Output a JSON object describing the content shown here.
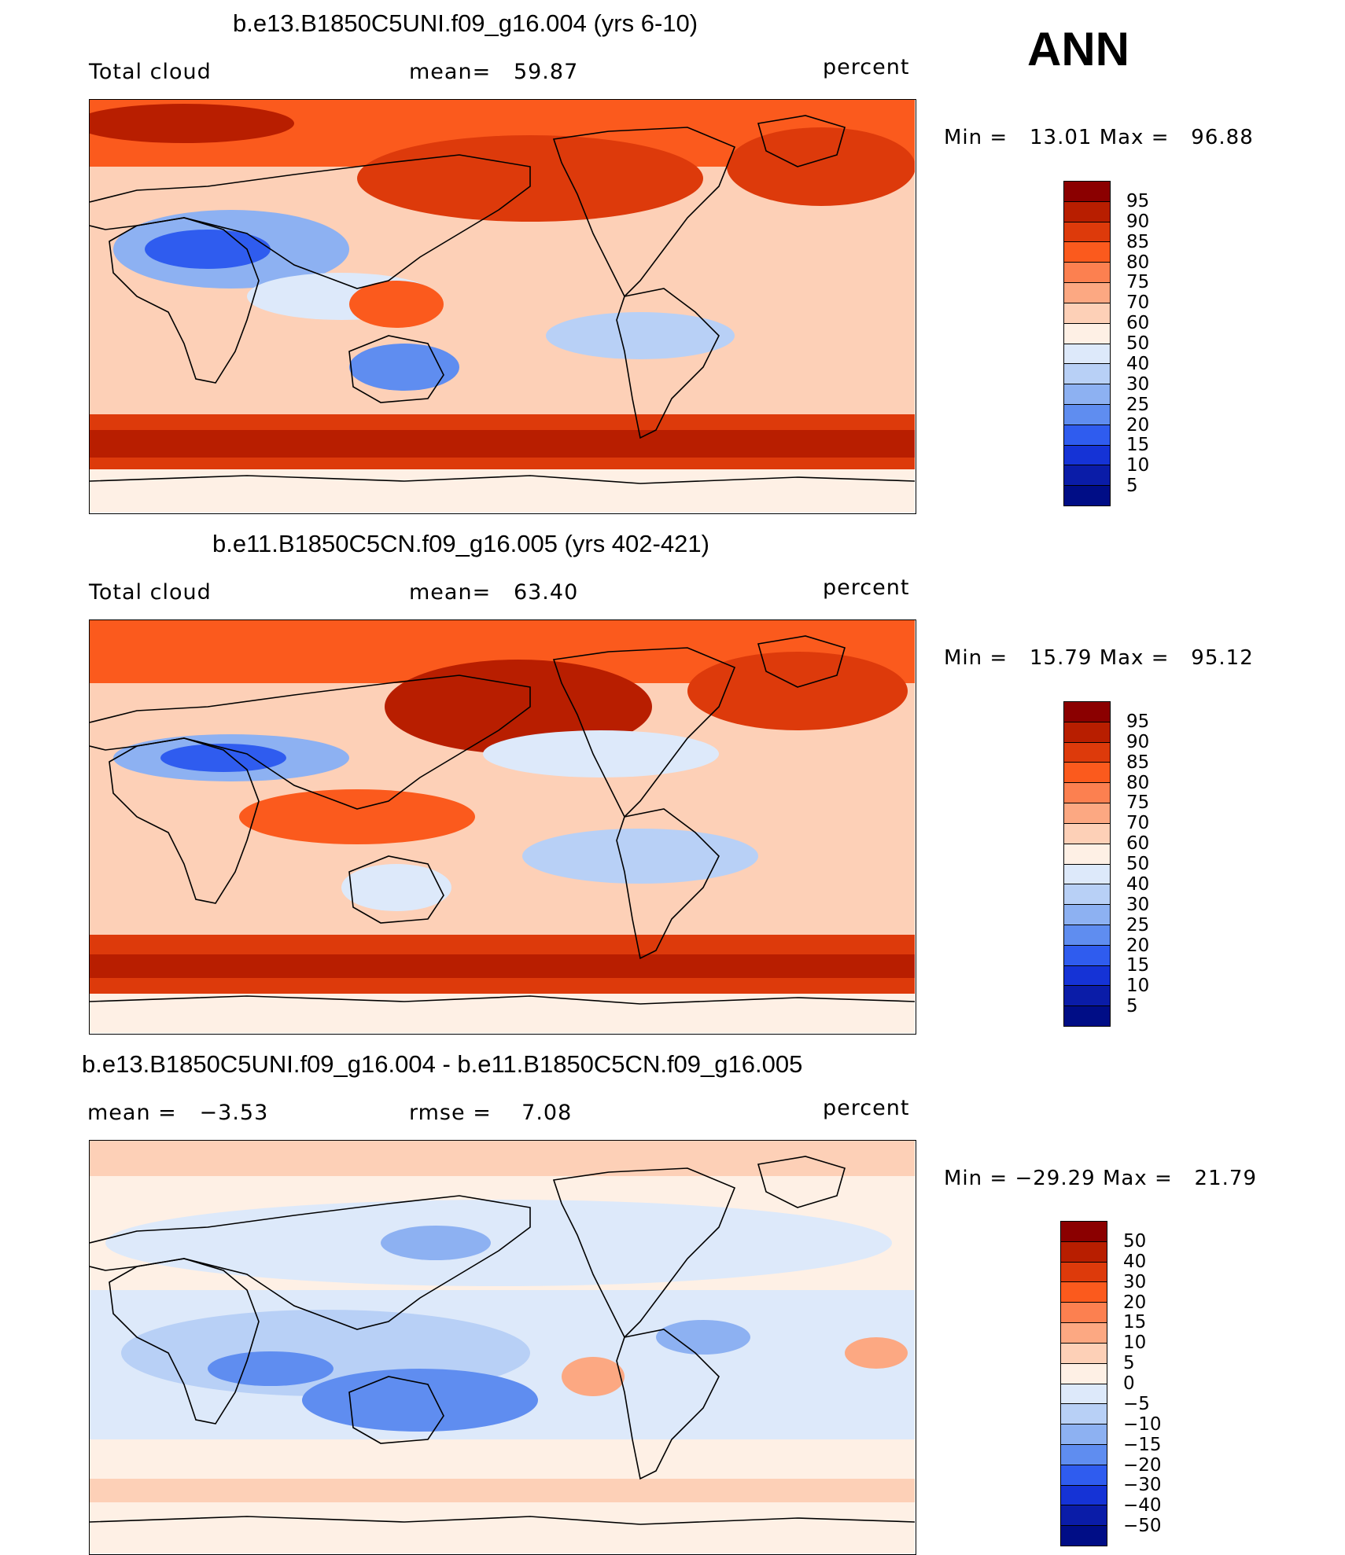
{
  "season": "ANN",
  "chart_data": [
    {
      "type": "heatmap",
      "title": "b.e13.B1850C5UNI.f09_g16.004 (yrs 6-10)",
      "variable": "Total cloud",
      "units": "percent",
      "mean_label": "mean=",
      "mean": "59.87",
      "min_label": "Min =",
      "min": "13.01",
      "max_label": "Max =",
      "max": "96.88",
      "levels": [
        "95",
        "90",
        "85",
        "80",
        "75",
        "70",
        "60",
        "50",
        "40",
        "30",
        "25",
        "20",
        "15",
        "10",
        "5"
      ],
      "colors": [
        "#8b0000",
        "#b81e00",
        "#dd3a0b",
        "#fb5a1d",
        "#fc8050",
        "#fca882",
        "#fdd0b7",
        "#fef0e5",
        "#dde9fa",
        "#b8d0f6",
        "#8db1f2",
        "#5f8df0",
        "#2f5cef",
        "#1533d6",
        "#0a1ca8",
        "#000d86"
      ],
      "xlabel": "",
      "ylabel": ""
    },
    {
      "type": "heatmap",
      "title": "b.e11.B1850C5CN.f09_g16.005 (yrs 402-421)",
      "variable": "Total cloud",
      "units": "percent",
      "mean_label": "mean=",
      "mean": "63.40",
      "min_label": "Min =",
      "min": "15.79",
      "max_label": "Max =",
      "max": "95.12",
      "levels": [
        "95",
        "90",
        "85",
        "80",
        "75",
        "70",
        "60",
        "50",
        "40",
        "30",
        "25",
        "20",
        "15",
        "10",
        "5"
      ],
      "colors": [
        "#8b0000",
        "#b81e00",
        "#dd3a0b",
        "#fb5a1d",
        "#fc8050",
        "#fca882",
        "#fdd0b7",
        "#fef0e5",
        "#dde9fa",
        "#b8d0f6",
        "#8db1f2",
        "#5f8df0",
        "#2f5cef",
        "#1533d6",
        "#0a1ca8",
        "#000d86"
      ],
      "xlabel": "",
      "ylabel": ""
    },
    {
      "type": "heatmap",
      "title": "b.e13.B1850C5UNI.f09_g16.004 - b.e11.B1850C5CN.f09_g16.005",
      "variable": "",
      "units": "percent",
      "mean_label": "mean =",
      "mean": "−3.53",
      "rmse_label": "rmse =",
      "rmse": "7.08",
      "min_label": "Min =",
      "min": "−29.29",
      "max_label": "Max =",
      "max": "21.79",
      "levels": [
        "50",
        "40",
        "30",
        "20",
        "15",
        "10",
        "5",
        "0",
        "−5",
        "−10",
        "−15",
        "−20",
        "−30",
        "−40",
        "−50"
      ],
      "colors": [
        "#8b0000",
        "#b81e00",
        "#dd3a0b",
        "#fb5a1d",
        "#fc8050",
        "#fca882",
        "#fdd0b7",
        "#fef0e5",
        "#dde9fa",
        "#b8d0f6",
        "#8db1f2",
        "#5f8df0",
        "#2f5cef",
        "#1533d6",
        "#0a1ca8",
        "#000d86"
      ],
      "xlabel": "",
      "ylabel": ""
    }
  ]
}
